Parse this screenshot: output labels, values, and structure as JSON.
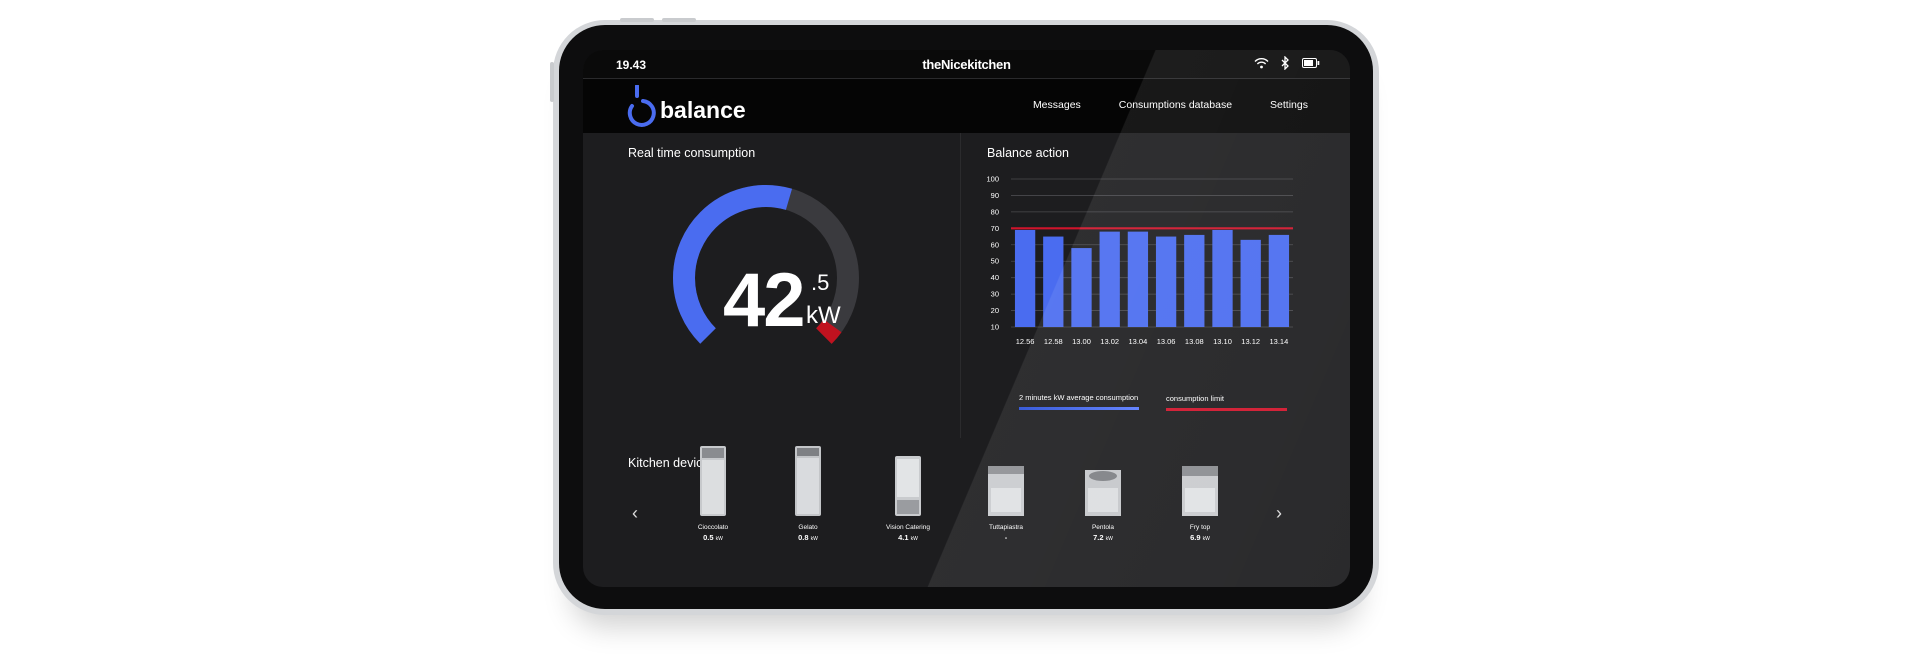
{
  "status_bar": {
    "time": "19.43",
    "brand": "theNicekitchen"
  },
  "app": {
    "logo_text": "balance",
    "nav": [
      {
        "label": "Messages"
      },
      {
        "label": "Consumptions database"
      },
      {
        "label": "Settings"
      }
    ]
  },
  "realtime": {
    "title": "Real time consumption",
    "value_int": "42",
    "value_dec": ".5",
    "unit": "kW",
    "fill_fraction": 0.56
  },
  "balance": {
    "title": "Balance action",
    "legend": [
      {
        "label": "2 minutes kW average consumption",
        "color": "#4a6cf0"
      },
      {
        "label": "consumption limit",
        "color": "#d0142b"
      }
    ]
  },
  "chart_data": {
    "type": "bar",
    "categories": [
      "12.56",
      "12.58",
      "13.00",
      "13.02",
      "13.04",
      "13.06",
      "13.08",
      "13.10",
      "13.12",
      "13.14"
    ],
    "series": [
      {
        "name": "2 minutes kW average consumption",
        "values": [
          69,
          65,
          58,
          68,
          68,
          65,
          66,
          69,
          63,
          66
        ]
      }
    ],
    "extra_bars_values": [],
    "limit": {
      "name": "consumption limit",
      "value": 70
    },
    "yticks": [
      10,
      20,
      30,
      40,
      50,
      60,
      70,
      80,
      90,
      100
    ],
    "ylim": [
      10,
      100
    ],
    "title": "",
    "xlabel": "",
    "ylabel": ""
  },
  "devices": {
    "title": "Kitchen devices",
    "items": [
      {
        "name": "Cioccolato",
        "value": "0.5",
        "unit": "kW"
      },
      {
        "name": "Gelato",
        "value": "0.8",
        "unit": "kW"
      },
      {
        "name": "Vision Catering",
        "value": "4.1",
        "unit": "kW"
      },
      {
        "name": "Tuttapiastra",
        "value": "-",
        "unit": ""
      },
      {
        "name": "Pentola",
        "value": "7.2",
        "unit": "kW"
      },
      {
        "name": "Fry top",
        "value": "6.9",
        "unit": "kW"
      }
    ]
  },
  "colors": {
    "accent": "#4a6cf0",
    "limit": "#d0142b",
    "background": "#1d1d1f"
  }
}
